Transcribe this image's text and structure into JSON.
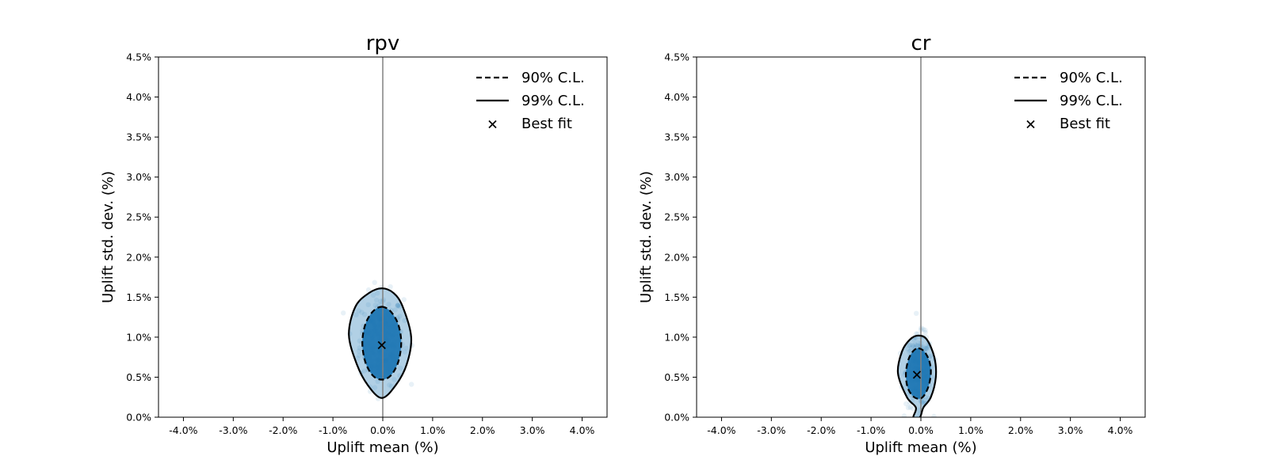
{
  "chart_data": [
    {
      "type": "scatter",
      "title": "rpv",
      "xlabel": "Uplift mean (%)",
      "ylabel": "Uplift std. dev. (%)",
      "xlim": [
        -4.5,
        4.5
      ],
      "ylim": [
        0,
        4.5
      ],
      "x_ticks": [
        -4,
        -3,
        -2,
        -1,
        0,
        1,
        2,
        3,
        4
      ],
      "x_tick_labels": [
        "-4.0%",
        "-3.0%",
        "-2.0%",
        "-1.0%",
        "0.0%",
        "1.0%",
        "2.0%",
        "3.0%",
        "4.0%"
      ],
      "y_ticks": [
        0,
        0.5,
        1,
        1.5,
        2,
        2.5,
        3,
        3.5,
        4,
        4.5
      ],
      "y_tick_labels": [
        "0.0%",
        "0.5%",
        "1.0%",
        "1.5%",
        "2.0%",
        "2.5%",
        "3.0%",
        "3.5%",
        "4.0%",
        "4.5%"
      ],
      "reference_line_x": 0,
      "best_fit": {
        "x": -0.02,
        "y": 0.9
      },
      "samples": {
        "x_range": [
          -0.55,
          0.5
        ],
        "y_range": [
          0.3,
          1.65
        ],
        "color": "#1f77b4"
      },
      "contour_90": [
        [
          -0.02,
          1.38
        ],
        [
          0.16,
          1.32
        ],
        [
          0.31,
          1.16
        ],
        [
          0.37,
          0.93
        ],
        [
          0.31,
          0.69
        ],
        [
          0.16,
          0.52
        ],
        [
          -0.02,
          0.47
        ],
        [
          -0.2,
          0.52
        ],
        [
          -0.35,
          0.69
        ],
        [
          -0.41,
          0.93
        ],
        [
          -0.35,
          1.16
        ],
        [
          -0.2,
          1.32
        ]
      ],
      "contour_99": [
        [
          -0.02,
          1.61
        ],
        [
          0.22,
          1.55
        ],
        [
          0.4,
          1.38
        ],
        [
          0.57,
          1.0
        ],
        [
          0.48,
          0.66
        ],
        [
          0.26,
          0.4
        ],
        [
          -0.02,
          0.24
        ],
        [
          -0.3,
          0.4
        ],
        [
          -0.52,
          0.66
        ],
        [
          -0.68,
          1.03
        ],
        [
          -0.55,
          1.38
        ],
        [
          -0.28,
          1.55
        ]
      ],
      "legend": {
        "placement": "top-right",
        "entries": [
          {
            "label": "90% C.L.",
            "style": "dashed"
          },
          {
            "label": "99% C.L.",
            "style": "solid"
          },
          {
            "label": "Best fit",
            "style": "marker"
          }
        ]
      }
    },
    {
      "type": "scatter",
      "title": "cr",
      "xlabel": "Uplift mean (%)",
      "ylabel": "Uplift std. dev. (%)",
      "xlim": [
        -4.5,
        4.5
      ],
      "ylim": [
        0,
        4.5
      ],
      "x_ticks": [
        -4,
        -3,
        -2,
        -1,
        0,
        1,
        2,
        3,
        4
      ],
      "x_tick_labels": [
        "-4.0%",
        "-3.0%",
        "-2.0%",
        "-1.0%",
        "0.0%",
        "1.0%",
        "2.0%",
        "3.0%",
        "4.0%"
      ],
      "y_ticks": [
        0,
        0.5,
        1,
        1.5,
        2,
        2.5,
        3,
        3.5,
        4,
        4.5
      ],
      "y_tick_labels": [
        "0.0%",
        "0.5%",
        "1.0%",
        "1.5%",
        "2.0%",
        "2.5%",
        "3.0%",
        "3.5%",
        "4.0%",
        "4.5%"
      ],
      "reference_line_x": 0,
      "best_fit": {
        "x": -0.08,
        "y": 0.53
      },
      "samples": {
        "x_range": [
          -0.35,
          0.28
        ],
        "y_range": [
          0.05,
          1.1
        ],
        "color": "#1f77b4"
      },
      "contour_90": [
        [
          -0.05,
          0.86
        ],
        [
          0.07,
          0.82
        ],
        [
          0.17,
          0.7
        ],
        [
          0.2,
          0.55
        ],
        [
          0.15,
          0.38
        ],
        [
          0.05,
          0.26
        ],
        [
          -0.05,
          0.23
        ],
        [
          -0.17,
          0.27
        ],
        [
          -0.27,
          0.38
        ],
        [
          -0.3,
          0.55
        ],
        [
          -0.25,
          0.72
        ],
        [
          -0.15,
          0.83
        ]
      ],
      "contour_99": [
        [
          -0.05,
          1.02
        ],
        [
          0.12,
          0.97
        ],
        [
          0.27,
          0.75
        ],
        [
          0.3,
          0.5
        ],
        [
          0.2,
          0.25
        ],
        [
          0.05,
          0.12
        ],
        [
          -0.02,
          0.0
        ],
        [
          -0.15,
          0.0
        ],
        [
          -0.1,
          0.12
        ],
        [
          -0.28,
          0.25
        ],
        [
          -0.46,
          0.55
        ],
        [
          -0.38,
          0.82
        ],
        [
          -0.22,
          0.97
        ]
      ],
      "legend": {
        "placement": "top-right",
        "entries": [
          {
            "label": "90% C.L.",
            "style": "dashed"
          },
          {
            "label": "99% C.L.",
            "style": "solid"
          },
          {
            "label": "Best fit",
            "style": "marker"
          }
        ]
      }
    }
  ]
}
